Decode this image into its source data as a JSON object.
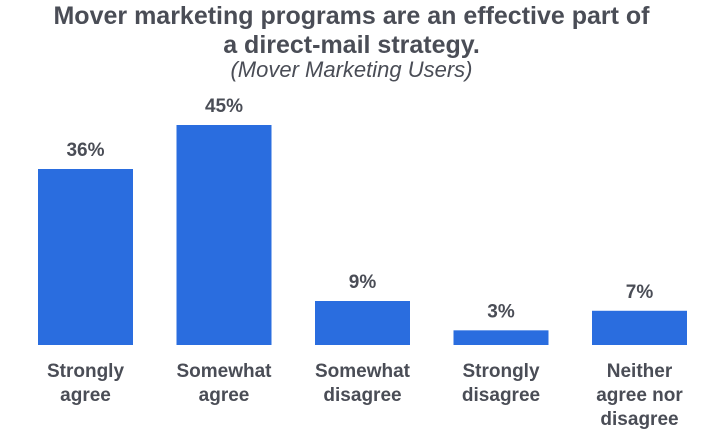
{
  "header": {
    "title_line1": "Mover marketing programs are an effective part of",
    "title_line2": "a direct-mail strategy.",
    "subtitle": "(Mover Marketing Users)"
  },
  "chart_data": {
    "type": "bar",
    "title": "Mover marketing programs are an effective part of a direct-mail strategy.",
    "subtitle": "(Mover Marketing Users)",
    "categories": [
      "Strongly agree",
      "Somewhat agree",
      "Somewhat disagree",
      "Strongly disagree",
      "Neither agree nor disagree"
    ],
    "category_lines": [
      [
        "Strongly",
        "agree"
      ],
      [
        "Somewhat",
        "agree"
      ],
      [
        "Somewhat",
        "disagree"
      ],
      [
        "Strongly",
        "disagree"
      ],
      [
        "Neither",
        "agree nor",
        "disagree"
      ]
    ],
    "values": [
      36,
      45,
      9,
      3,
      7
    ],
    "value_labels": [
      "36%",
      "45%",
      "9%",
      "3%",
      "7%"
    ],
    "unit": "%",
    "ylim": [
      0,
      45
    ],
    "bar_color": "#2a6ddf",
    "grid": false,
    "legend": "none"
  }
}
